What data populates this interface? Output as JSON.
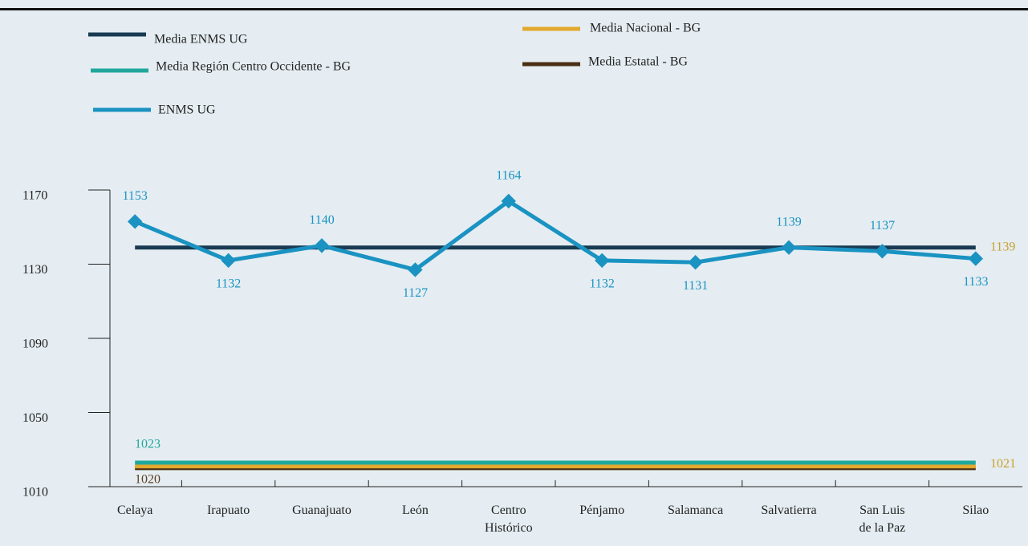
{
  "chart_data": {
    "type": "line",
    "categories": [
      [
        "Celaya"
      ],
      [
        "Irapuato"
      ],
      [
        "Guanajuato"
      ],
      [
        "León"
      ],
      [
        "Centro",
        "Histórico"
      ],
      [
        "Pénjamo"
      ],
      [
        "Salamanca"
      ],
      [
        "Salvatierra"
      ],
      [
        "San Luis",
        "de la Paz"
      ],
      [
        "Silao"
      ]
    ],
    "series": [
      {
        "name": "ENMS UG",
        "color": "#1a93c2",
        "values": [
          1153,
          1132,
          1140,
          1127,
          1164,
          1132,
          1131,
          1139,
          1137,
          1133
        ]
      },
      {
        "name": "Media ENMS UG",
        "color": "#183a52",
        "value": 1139,
        "label_color": "#c9a02c"
      },
      {
        "name": "Media Región Centro Occidente - BG",
        "color": "#1fa89b",
        "value": 1023,
        "label_color": "#1fa89b"
      },
      {
        "name": "Media Nacional - BG",
        "color": "#e2a92e",
        "value": 1021,
        "label_color": "#c9a02c"
      },
      {
        "name": "Media Estatal - BG",
        "color": "#4b2f12",
        "value": 1020,
        "label_color": "#5a4020"
      }
    ],
    "ylim": [
      1010,
      1170
    ],
    "yticks": [
      1010,
      1050,
      1090,
      1130,
      1170
    ]
  }
}
